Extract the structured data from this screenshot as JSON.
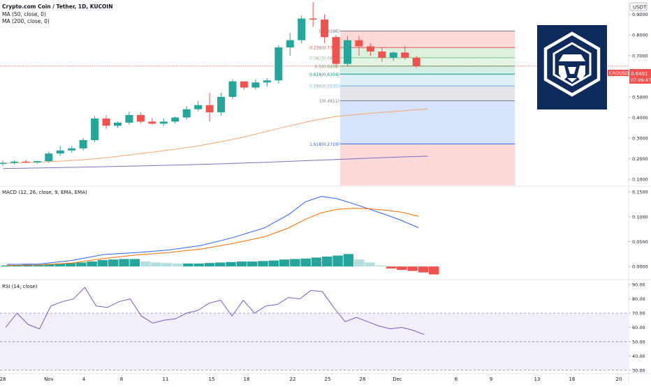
{
  "header": {
    "symbol_line": "Crypto.com Coin / Tether, 1D, KUCOIN",
    "ma50_label": "MA (50, close, 0)",
    "ma200_label": "MA (200, close, 0)",
    "currency": "USDT"
  },
  "price_tag": {
    "symbol": "CROUSDT",
    "price": "0.6491",
    "countdown": "07:09:47",
    "value": 0.6491
  },
  "chart_data": [
    {
      "type": "candlestick",
      "panel": "price",
      "y_ticks": [
        "0.9000",
        "0.8000",
        "0.7000",
        "0.6000",
        "0.5000",
        "0.4000",
        "0.3000",
        "0.2000",
        "0.1000"
      ],
      "ylim": [
        0.07,
        0.97
      ],
      "x_ticks": [
        "28",
        "Nov",
        "4",
        "8",
        "11",
        "15",
        "18",
        "22",
        "25",
        "28",
        "Dec",
        "6",
        "9",
        "13",
        "16",
        "20"
      ],
      "candles": [
        {
          "o": 0.175,
          "h": 0.19,
          "l": 0.165,
          "c": 0.18
        },
        {
          "o": 0.18,
          "h": 0.192,
          "l": 0.172,
          "c": 0.186
        },
        {
          "o": 0.186,
          "h": 0.195,
          "l": 0.178,
          "c": 0.182
        },
        {
          "o": 0.182,
          "h": 0.19,
          "l": 0.175,
          "c": 0.188
        },
        {
          "o": 0.188,
          "h": 0.235,
          "l": 0.18,
          "c": 0.225
        },
        {
          "o": 0.225,
          "h": 0.262,
          "l": 0.215,
          "c": 0.24
        },
        {
          "o": 0.24,
          "h": 0.26,
          "l": 0.228,
          "c": 0.25
        },
        {
          "o": 0.25,
          "h": 0.3,
          "l": 0.24,
          "c": 0.29
        },
        {
          "o": 0.29,
          "h": 0.408,
          "l": 0.28,
          "c": 0.395
        },
        {
          "o": 0.395,
          "h": 0.41,
          "l": 0.345,
          "c": 0.36
        },
        {
          "o": 0.36,
          "h": 0.38,
          "l": 0.35,
          "c": 0.375
        },
        {
          "o": 0.375,
          "h": 0.428,
          "l": 0.365,
          "c": 0.412
        },
        {
          "o": 0.412,
          "h": 0.425,
          "l": 0.37,
          "c": 0.38
        },
        {
          "o": 0.38,
          "h": 0.398,
          "l": 0.365,
          "c": 0.37
        },
        {
          "o": 0.37,
          "h": 0.395,
          "l": 0.36,
          "c": 0.38
        },
        {
          "o": 0.38,
          "h": 0.405,
          "l": 0.37,
          "c": 0.4
        },
        {
          "o": 0.4,
          "h": 0.455,
          "l": 0.39,
          "c": 0.44
        },
        {
          "o": 0.44,
          "h": 0.48,
          "l": 0.43,
          "c": 0.46
        },
        {
          "o": 0.46,
          "h": 0.52,
          "l": 0.38,
          "c": 0.425
        },
        {
          "o": 0.425,
          "h": 0.52,
          "l": 0.41,
          "c": 0.5
        },
        {
          "o": 0.5,
          "h": 0.585,
          "l": 0.49,
          "c": 0.575
        },
        {
          "o": 0.575,
          "h": 0.575,
          "l": 0.535,
          "c": 0.545
        },
        {
          "o": 0.545,
          "h": 0.585,
          "l": 0.535,
          "c": 0.57
        },
        {
          "o": 0.57,
          "h": 0.59,
          "l": 0.55,
          "c": 0.58
        },
        {
          "o": 0.58,
          "h": 0.75,
          "l": 0.565,
          "c": 0.74
        },
        {
          "o": 0.74,
          "h": 0.81,
          "l": 0.7,
          "c": 0.775
        },
        {
          "o": 0.775,
          "h": 0.895,
          "l": 0.76,
          "c": 0.88
        },
        {
          "o": 0.88,
          "h": 0.96,
          "l": 0.84,
          "c": 0.875
        },
        {
          "o": 0.875,
          "h": 0.9,
          "l": 0.76,
          "c": 0.79
        },
        {
          "o": 0.79,
          "h": 0.8,
          "l": 0.64,
          "c": 0.66
        },
        {
          "o": 0.66,
          "h": 0.795,
          "l": 0.65,
          "c": 0.775
        },
        {
          "o": 0.775,
          "h": 0.795,
          "l": 0.7,
          "c": 0.745
        },
        {
          "o": 0.745,
          "h": 0.76,
          "l": 0.7,
          "c": 0.72
        },
        {
          "o": 0.72,
          "h": 0.74,
          "l": 0.67,
          "c": 0.69
        },
        {
          "o": 0.69,
          "h": 0.72,
          "l": 0.675,
          "c": 0.715
        },
        {
          "o": 0.715,
          "h": 0.745,
          "l": 0.68,
          "c": 0.69
        },
        {
          "o": 0.69,
          "h": 0.7,
          "l": 0.64,
          "c": 0.649
        }
      ],
      "ma50": [
        [
          0.51,
          0.178
        ],
        [
          1.5,
          0.18
        ],
        [
          3.5,
          0.183
        ],
        [
          5.5,
          0.188
        ],
        [
          7.5,
          0.195
        ],
        [
          9.5,
          0.205
        ],
        [
          11.5,
          0.218
        ],
        [
          13.5,
          0.232
        ],
        [
          15.5,
          0.246
        ],
        [
          17.5,
          0.262
        ],
        [
          19.5,
          0.282
        ],
        [
          21.5,
          0.305
        ],
        [
          23.5,
          0.333
        ],
        [
          25.5,
          0.36
        ],
        [
          27.5,
          0.385
        ],
        [
          29.5,
          0.405
        ],
        [
          31.5,
          0.415
        ],
        [
          33.5,
          0.425
        ],
        [
          35.5,
          0.433
        ],
        [
          37.5,
          0.442
        ]
      ],
      "ma200": [
        [
          0.51,
          0.152
        ],
        [
          4.5,
          0.156
        ],
        [
          8.5,
          0.16
        ],
        [
          12.5,
          0.165
        ],
        [
          16.5,
          0.17
        ],
        [
          20.5,
          0.177
        ],
        [
          24.5,
          0.185
        ],
        [
          28.5,
          0.194
        ],
        [
          32.5,
          0.203
        ],
        [
          35.5,
          0.209
        ],
        [
          37.5,
          0.212
        ]
      ],
      "fib_levels": [
        {
          "ratio": "0",
          "value": "0.8196",
          "v": 0.8196
        },
        {
          "ratio": "0.236",
          "value": "0.7392",
          "v": 0.7392
        },
        {
          "ratio": "0.382",
          "value": "0.6895",
          "v": 0.6895
        },
        {
          "ratio": "0.5",
          "value": "0.6493",
          "v": 0.6493
        },
        {
          "ratio": "0.618",
          "value": "0.6104",
          "v": 0.6104
        },
        {
          "ratio": "0.786",
          "value": "0.5535",
          "v": 0.5535
        },
        {
          "ratio": "1",
          "value": "0.4811",
          "v": 0.4811
        },
        {
          "ratio": "1.618",
          "value": "0.2719",
          "v": 0.2719
        }
      ]
    },
    {
      "type": "macd",
      "panel": "macd",
      "label": "MACD (12, 26, close, 9, EMA, EMA)",
      "y_ticks": [
        "0.1500",
        "0.1000",
        "0.0500",
        "0.0000"
      ],
      "ylim": [
        -0.025,
        0.16
      ],
      "histogram": [
        0.002,
        0.003,
        0.004,
        0.004,
        0.005,
        0.006,
        0.007,
        0.008,
        0.01,
        0.013,
        0.014,
        0.015,
        0.015,
        0.01,
        0.008,
        0.007,
        0.006,
        0.006,
        0.006,
        0.007,
        0.008,
        0.009,
        0.01,
        0.01,
        0.011,
        0.012,
        0.014,
        0.015,
        0.016,
        0.018,
        0.02,
        0.022,
        0.025,
        0.014,
        0.008,
        0.002,
        -0.004,
        -0.007,
        -0.009,
        -0.012,
        -0.016
      ],
      "macd_line": [
        [
          0.5,
          0.004
        ],
        [
          4.5,
          0.005
        ],
        [
          8.5,
          0.012
        ],
        [
          12.5,
          0.024
        ],
        [
          16.5,
          0.028
        ],
        [
          20.5,
          0.033
        ],
        [
          24.5,
          0.042
        ],
        [
          28.5,
          0.058
        ],
        [
          32.5,
          0.078
        ],
        [
          35.5,
          0.105
        ],
        [
          37.5,
          0.13
        ],
        [
          39.5,
          0.141
        ],
        [
          41.5,
          0.136
        ],
        [
          43.5,
          0.126
        ],
        [
          45.5,
          0.115
        ],
        [
          47.5,
          0.104
        ],
        [
          49.5,
          0.092
        ],
        [
          51.5,
          0.078
        ]
      ],
      "signal_line": [
        [
          0.5,
          0.002
        ],
        [
          4.5,
          0.003
        ],
        [
          8.5,
          0.007
        ],
        [
          12.5,
          0.016
        ],
        [
          16.5,
          0.023
        ],
        [
          20.5,
          0.028
        ],
        [
          24.5,
          0.035
        ],
        [
          28.5,
          0.046
        ],
        [
          32.5,
          0.06
        ],
        [
          35.5,
          0.078
        ],
        [
          37.5,
          0.095
        ],
        [
          39.5,
          0.108
        ],
        [
          41.5,
          0.115
        ],
        [
          43.5,
          0.117
        ],
        [
          45.5,
          0.116
        ],
        [
          47.5,
          0.113
        ],
        [
          49.5,
          0.109
        ],
        [
          51.5,
          0.101
        ]
      ]
    },
    {
      "type": "line",
      "panel": "rsi",
      "label": "RSI (14, close)",
      "y_ticks": [
        "90.00",
        "80.00",
        "70.00",
        "60.00",
        "50.00",
        "40.00",
        "30.00"
      ],
      "ylim": [
        28,
        93
      ],
      "bands": [
        30,
        50,
        70
      ],
      "values": [
        [
          0.5,
          60
        ],
        [
          2.5,
          70
        ],
        [
          4.5,
          62
        ],
        [
          6.5,
          59
        ],
        [
          8.5,
          75
        ],
        [
          10.5,
          78
        ],
        [
          12.5,
          80
        ],
        [
          14.5,
          88
        ],
        [
          16.5,
          75
        ],
        [
          18.5,
          74
        ],
        [
          20.5,
          78
        ],
        [
          22.5,
          80
        ],
        [
          24.5,
          68
        ],
        [
          26.5,
          63
        ],
        [
          28.5,
          65
        ],
        [
          30.5,
          66
        ],
        [
          32.5,
          70
        ],
        [
          34.5,
          72
        ],
        [
          36.5,
          77
        ],
        [
          38.5,
          79
        ],
        [
          40.5,
          68
        ],
        [
          42.5,
          79
        ],
        [
          44.5,
          70
        ],
        [
          46.5,
          75
        ],
        [
          48.5,
          76
        ],
        [
          50.5,
          81
        ],
        [
          52.5,
          80
        ],
        [
          54.5,
          86
        ],
        [
          56.5,
          85
        ],
        [
          58.5,
          74
        ],
        [
          60.5,
          64
        ],
        [
          62.5,
          67
        ],
        [
          64.5,
          64
        ],
        [
          66.5,
          61
        ],
        [
          68.5,
          59
        ],
        [
          70.5,
          60
        ],
        [
          72.5,
          58
        ],
        [
          74.5,
          55
        ]
      ]
    }
  ]
}
